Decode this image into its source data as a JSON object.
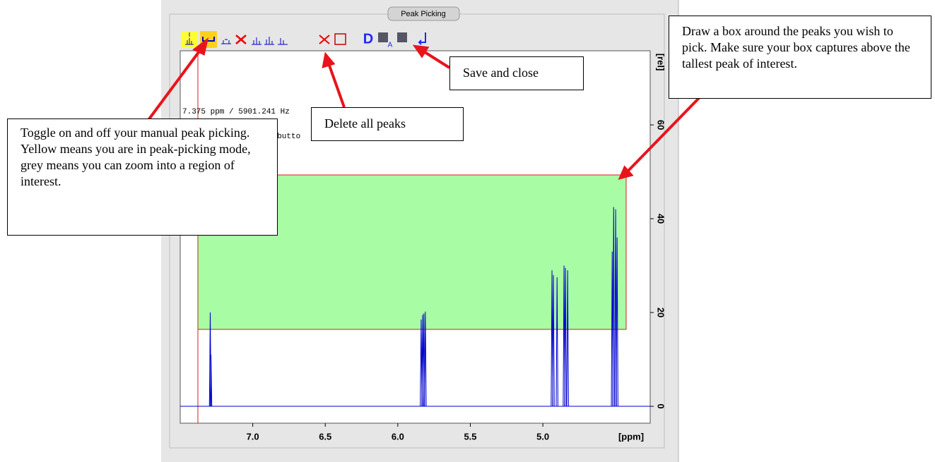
{
  "chart_data": {
    "type": "spectrum",
    "x": [
      7.293,
      7.288,
      5.839,
      5.829,
      5.82,
      5.81,
      4.937,
      4.927,
      4.902,
      4.854,
      4.844,
      4.829,
      4.522,
      4.512,
      4.498,
      4.488
    ],
    "values": [
      20,
      11,
      18.5,
      19.5,
      19.8,
      20.2,
      29,
      28,
      27.5,
      30,
      29.5,
      29,
      33,
      42.5,
      42,
      36
    ],
    "color": "#0000cc",
    "xlabel": "[ppm]",
    "ylabel": "[rel]",
    "xlim": [
      7.5,
      4.26
    ],
    "ylim": [
      -3.6,
      75.8
    ],
    "xticks": [
      {
        "value": 7,
        "label": "7.0"
      },
      6.5,
      {
        "value": 6,
        "label": "6.0"
      },
      5.5,
      {
        "value": 5,
        "label": "5.0"
      }
    ],
    "yticks": [
      0,
      20,
      40,
      60
    ]
  },
  "panel": {
    "title": "Peak Picking",
    "cursor_readout": "7.375 ppm / 5901.241 Hz",
    "hint_fragment": "e butto",
    "toolbar_letter": "D",
    "toolbar_sub": "A"
  },
  "callouts": [
    "Toggle on and off your manual peak picking.  Yellow means you are in peak-picking mode, grey means you can zoom into a region of interest.",
    "Delete all peaks",
    "Save and close",
    "Draw a box around the peaks you wish to pick.  Make sure your box captures above the tallest peak of interest."
  ]
}
